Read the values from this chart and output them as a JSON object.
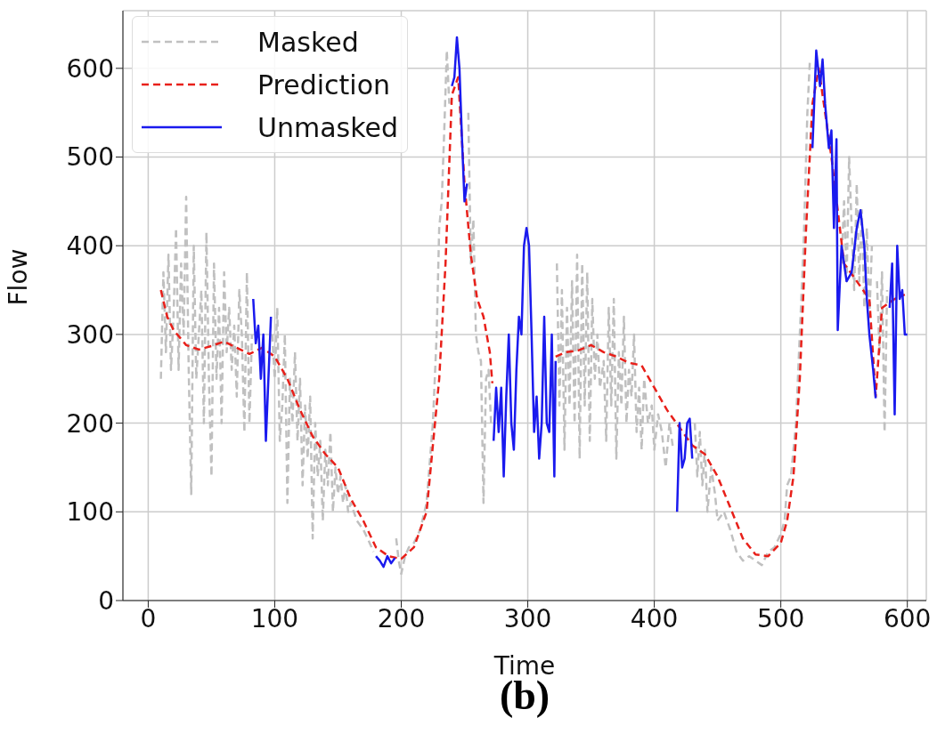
{
  "chart_data": {
    "type": "line",
    "xlabel": "Time",
    "ylabel": "Flow",
    "annotations": [
      "(b)"
    ],
    "xlim": [
      -20,
      615
    ],
    "ylim": [
      0,
      665
    ],
    "xticks": [
      0,
      100,
      200,
      300,
      400,
      500,
      600
    ],
    "yticks": [
      0,
      100,
      200,
      300,
      400,
      500,
      600
    ],
    "grid": true,
    "legend": "top left",
    "series": [
      {
        "name": "Masked",
        "color": "#c0c0c0",
        "line_style": "dashed",
        "x": [
          10,
          12,
          14,
          16,
          18,
          20,
          22,
          24,
          26,
          28,
          30,
          32,
          34,
          36,
          38,
          40,
          42,
          44,
          46,
          48,
          50,
          52,
          54,
          56,
          58,
          60,
          62,
          64,
          66,
          68,
          70,
          72,
          74,
          76,
          78,
          80,
          82,
          84,
          98,
          100,
          102,
          104,
          106,
          108,
          110,
          112,
          114,
          116,
          118,
          120,
          122,
          124,
          126,
          128,
          130,
          132,
          134,
          136,
          138,
          140,
          142,
          144,
          146,
          148,
          150,
          152,
          154,
          156,
          158,
          160,
          165,
          170,
          175,
          178,
          179,
          196,
          198,
          200,
          203,
          206,
          210,
          215,
          220,
          225,
          228,
          230,
          232,
          234,
          236,
          238,
          239,
          253,
          255,
          257,
          259,
          261,
          263,
          265,
          267,
          269,
          271,
          272,
          323,
          325,
          327,
          329,
          331,
          333,
          335,
          337,
          339,
          341,
          343,
          345,
          347,
          349,
          351,
          353,
          355,
          357,
          360,
          362,
          364,
          366,
          368,
          370,
          372,
          374,
          376,
          378,
          380,
          382,
          384,
          386,
          388,
          390,
          392,
          395,
          398,
          400,
          403,
          406,
          409,
          412,
          415,
          417,
          432,
          434,
          436,
          438,
          440,
          442,
          445,
          448,
          450,
          455,
          460,
          465,
          470,
          475,
          480,
          485,
          490,
          495,
          500,
          503,
          505,
          508,
          512,
          515,
          518,
          521,
          523,
          524,
          548,
          550,
          552,
          554,
          556,
          558,
          560,
          562,
          564,
          566,
          568,
          570,
          572,
          573,
          576,
          578,
          580,
          582,
          584
        ],
        "values": [
          250,
          370,
          280,
          390,
          260,
          320,
          420,
          260,
          380,
          300,
          455,
          260,
          120,
          400,
          250,
          300,
          350,
          200,
          415,
          250,
          140,
          380,
          250,
          330,
          200,
          370,
          280,
          330,
          260,
          310,
          230,
          350,
          300,
          190,
          370,
          200,
          300,
          null,
          300,
          250,
          330,
          180,
          220,
          300,
          110,
          250,
          200,
          280,
          180,
          250,
          130,
          220,
          160,
          230,
          70,
          200,
          140,
          180,
          90,
          170,
          130,
          190,
          100,
          150,
          120,
          140,
          110,
          130,
          100,
          110,
          90,
          80,
          65,
          55,
          null,
          70,
          45,
          30,
          50,
          60,
          65,
          80,
          110,
          200,
          300,
          420,
          450,
          530,
          620,
          560,
          null,
          550,
          380,
          430,
          300,
          280,
          270,
          110,
          250,
          260,
          200,
          null,
          380,
          220,
          350,
          170,
          330,
          220,
          360,
          200,
          390,
          160,
          380,
          220,
          370,
          180,
          340,
          250,
          300,
          240,
          270,
          180,
          330,
          220,
          340,
          160,
          280,
          220,
          320,
          200,
          260,
          230,
          300,
          190,
          240,
          170,
          250,
          200,
          220,
          170,
          210,
          190,
          150,
          200,
          170,
          null,
          200,
          140,
          190,
          130,
          170,
          100,
          150,
          120,
          90,
          100,
          80,
          55,
          45,
          50,
          45,
          40,
          55,
          60,
          75,
          90,
          130,
          140,
          200,
          300,
          400,
          550,
          610,
          null,
          380,
          450,
          360,
          500,
          420,
          350,
          470,
          360,
          440,
          330,
          420,
          320,
          400,
          null,
          360,
          280,
          370,
          190,
          350
        ]
      },
      {
        "name": "Prediction",
        "color": "#e8201a",
        "line_style": "dashed",
        "x": [
          10,
          15,
          20,
          30,
          40,
          50,
          60,
          70,
          80,
          90,
          100,
          110,
          120,
          130,
          140,
          150,
          160,
          170,
          180,
          190,
          200,
          210,
          220,
          230,
          235,
          240,
          245,
          250,
          255,
          260,
          265,
          270,
          272,
          273,
          322,
          330,
          340,
          350,
          360,
          370,
          380,
          390,
          400,
          410,
          420,
          430,
          440,
          450,
          460,
          470,
          480,
          490,
          500,
          505,
          510,
          515,
          520,
          525,
          530,
          540,
          550,
          560,
          570,
          575,
          580,
          590,
          598
        ],
        "values": [
          350,
          320,
          305,
          288,
          283,
          287,
          292,
          285,
          278,
          285,
          275,
          250,
          215,
          185,
          165,
          150,
          115,
          90,
          60,
          50,
          47,
          60,
          100,
          250,
          380,
          570,
          590,
          470,
          390,
          340,
          320,
          280,
          245,
          null,
          275,
          280,
          282,
          288,
          280,
          275,
          268,
          265,
          240,
          215,
          195,
          175,
          165,
          140,
          105,
          70,
          52,
          50,
          65,
          90,
          140,
          250,
          420,
          560,
          600,
          500,
          380,
          360,
          340,
          230,
          330,
          340,
          345
        ]
      },
      {
        "name": "Unmasked",
        "color": "#1a1aee",
        "line_style": "solid",
        "x": [
          83,
          85,
          87,
          89,
          91,
          93,
          95,
          97,
          98,
          180,
          183,
          186,
          189,
          192,
          195,
          196,
          240,
          242,
          244,
          246,
          248,
          250,
          252,
          253,
          273,
          275,
          277,
          279,
          281,
          283,
          285,
          287,
          289,
          291,
          293,
          295,
          297,
          299,
          301,
          303,
          305,
          307,
          309,
          311,
          313,
          315,
          317,
          319,
          321,
          322,
          323,
          418,
          420,
          422,
          424,
          426,
          428,
          430,
          431,
          525,
          528,
          531,
          533,
          535,
          538,
          540,
          542,
          544,
          545,
          548,
          552,
          556,
          560,
          563,
          566,
          568,
          570,
          573,
          575,
          576,
          586,
          588,
          590,
          592,
          594,
          596,
          598,
          600
        ],
        "values": [
          340,
          290,
          310,
          250,
          300,
          180,
          250,
          320,
          null,
          50,
          45,
          38,
          50,
          42,
          48,
          null,
          580,
          590,
          635,
          600,
          520,
          450,
          470,
          null,
          180,
          240,
          190,
          240,
          140,
          230,
          300,
          200,
          170,
          260,
          320,
          300,
          400,
          420,
          400,
          300,
          190,
          230,
          160,
          200,
          320,
          200,
          190,
          300,
          140,
          270,
          null,
          100,
          200,
          150,
          160,
          200,
          205,
          160,
          null,
          510,
          620,
          580,
          610,
          560,
          510,
          530,
          420,
          520,
          305,
          400,
          360,
          370,
          420,
          440,
          400,
          340,
          300,
          260,
          228,
          null,
          330,
          380,
          210,
          400,
          340,
          350,
          300,
          300
        ]
      }
    ]
  }
}
